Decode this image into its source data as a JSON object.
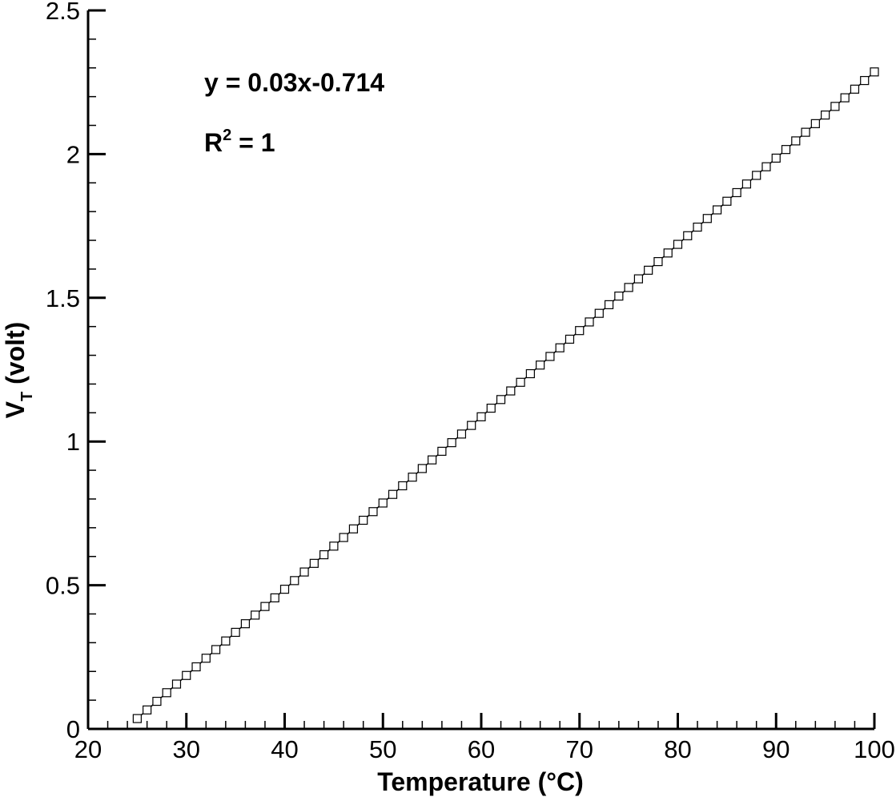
{
  "chart_data": {
    "type": "line",
    "title": "",
    "xlabel": "Temperature (°C)",
    "ylabel": "V",
    "ylabel_subscript": "T",
    "ylabel_suffix": " (volt)",
    "xlim": [
      20,
      100
    ],
    "ylim": [
      0,
      2.5
    ],
    "x_major_ticks": [
      20,
      30,
      40,
      50,
      60,
      70,
      80,
      90,
      100
    ],
    "x_tick_labels": [
      "20",
      "30",
      "40",
      "50",
      "60",
      "70",
      "80",
      "90",
      "100"
    ],
    "y_major_ticks": [
      0,
      0.5,
      1,
      1.5,
      2,
      2.5
    ],
    "y_tick_labels": [
      "0",
      "0.5",
      "1",
      "1.5",
      "2",
      "2.5"
    ],
    "x_minor_step": 2,
    "y_minor_step": 0.1,
    "grid": false,
    "marker": "hollow-square",
    "series": [
      {
        "x": [
          25,
          26,
          27,
          28,
          29,
          30,
          31,
          32,
          33,
          34,
          35,
          36,
          37,
          38,
          39,
          40,
          41,
          42,
          43,
          44,
          45,
          46,
          47,
          48,
          49,
          50,
          51,
          52,
          53,
          54,
          55,
          56,
          57,
          58,
          59,
          60,
          61,
          62,
          63,
          64,
          65,
          66,
          67,
          68,
          69,
          70,
          71,
          72,
          73,
          74,
          75,
          76,
          77,
          78,
          79,
          80,
          81,
          82,
          83,
          84,
          85,
          86,
          87,
          88,
          89,
          90,
          91,
          92,
          93,
          94,
          95,
          96,
          97,
          98,
          99,
          100
        ],
        "y": [
          0.036,
          0.066,
          0.096,
          0.126,
          0.156,
          0.186,
          0.216,
          0.246,
          0.276,
          0.306,
          0.336,
          0.366,
          0.396,
          0.426,
          0.456,
          0.486,
          0.516,
          0.546,
          0.576,
          0.606,
          0.636,
          0.666,
          0.696,
          0.726,
          0.756,
          0.786,
          0.816,
          0.846,
          0.876,
          0.906,
          0.936,
          0.966,
          0.996,
          1.026,
          1.056,
          1.086,
          1.116,
          1.146,
          1.176,
          1.206,
          1.236,
          1.266,
          1.296,
          1.326,
          1.356,
          1.386,
          1.416,
          1.446,
          1.476,
          1.506,
          1.536,
          1.566,
          1.596,
          1.626,
          1.656,
          1.686,
          1.716,
          1.746,
          1.776,
          1.806,
          1.836,
          1.866,
          1.896,
          1.926,
          1.956,
          1.986,
          2.016,
          2.046,
          2.076,
          2.106,
          2.136,
          2.166,
          2.196,
          2.226,
          2.256,
          2.286
        ]
      }
    ],
    "annotations": {
      "equation": "y = 0.03x-0.714",
      "r_squared_prefix": "R",
      "r_squared_superscript": "2",
      "r_squared_suffix": " = 1"
    }
  }
}
